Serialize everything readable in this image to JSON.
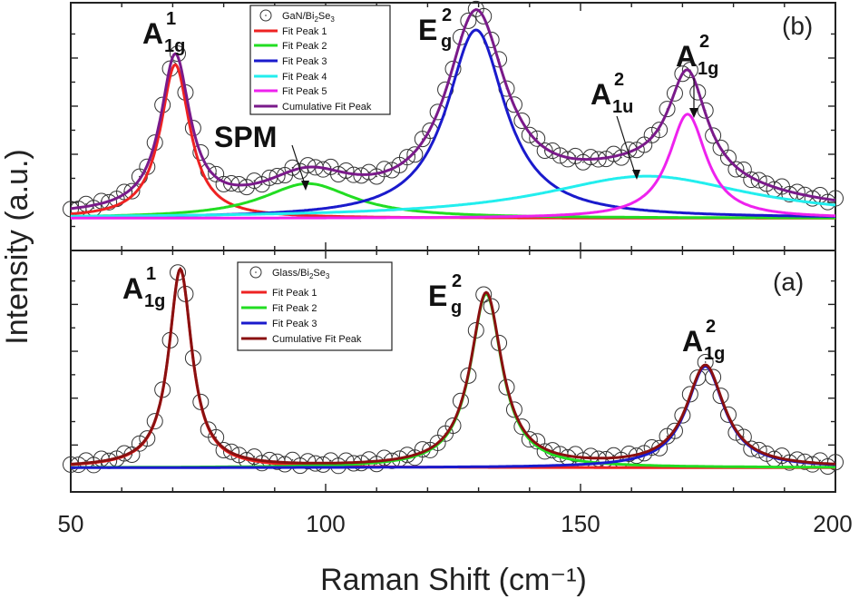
{
  "chart_data": {
    "type": "line",
    "x_axis": {
      "label": "Raman Shift (cm⁻¹)",
      "xlim": [
        50,
        200
      ],
      "ticks": [
        50,
        100,
        150,
        200
      ],
      "tick_labels": [
        "50",
        "100",
        "150",
        "200"
      ]
    },
    "y_axis": {
      "label": "Intensity (a.u.)"
    },
    "panels": [
      {
        "id": "b",
        "panel_label": "(b)",
        "sample": "GaN/Bi2Se3",
        "ylim": [
          0,
          100
        ],
        "baseline": 13,
        "legend": [
          {
            "label": "GaN/Bi2Se3",
            "symbol": "open-circle",
            "color": "#333333"
          },
          {
            "label": "Fit Peak 1",
            "color": "#ee2222"
          },
          {
            "label": "Fit Peak 2",
            "color": "#22dd22"
          },
          {
            "label": "Fit Peak 3",
            "color": "#1a1acc"
          },
          {
            "label": "Fit Peak 4",
            "color": "#22eeee"
          },
          {
            "label": "Fit Peak 5",
            "color": "#ee22ee"
          },
          {
            "label": "Cumulative Fit Peak",
            "color": "#7a1a8a"
          }
        ],
        "series": [
          {
            "name": "Fit Peak 1",
            "color": "#ee2222",
            "center": 70.5,
            "fwhm": 7,
            "amplitude": 62
          },
          {
            "name": "Fit Peak 2",
            "color": "#22dd22",
            "center": 96.5,
            "fwhm": 22,
            "amplitude": 14
          },
          {
            "name": "Fit Peak 3",
            "color": "#1a1acc",
            "center": 129.5,
            "fwhm": 14,
            "amplitude": 76
          },
          {
            "name": "Fit Peak 4",
            "color": "#22eeee",
            "center": 163,
            "fwhm": 50,
            "amplitude": 17
          },
          {
            "name": "Fit Peak 5",
            "color": "#ee22ee",
            "center": 171,
            "fwhm": 9,
            "amplitude": 42
          }
        ],
        "cumulative": {
          "name": "Cumulative Fit Peak",
          "color": "#7a1a8a"
        },
        "annotations": [
          {
            "main": "A",
            "sup": "1",
            "sub": "1g"
          },
          {
            "main": "SPM",
            "sup": "",
            "sub": ""
          },
          {
            "main": "E",
            "sup": "2",
            "sub": "g"
          },
          {
            "main": "A",
            "sup": "2",
            "sub": "1u"
          },
          {
            "main": "A",
            "sup": "2",
            "sub": "1g"
          }
        ]
      },
      {
        "id": "a",
        "panel_label": "(a)",
        "sample": "Glass/Bi2Se3",
        "ylim": [
          0,
          100
        ],
        "baseline": 10,
        "legend": [
          {
            "label": "Glass/Bi2Se3",
            "symbol": "open-circle",
            "color": "#333333"
          },
          {
            "label": "Fit Peak 1",
            "color": "#ee2222"
          },
          {
            "label": "Fit Peak 2",
            "color": "#22dd22"
          },
          {
            "label": "Fit Peak 3",
            "color": "#1a1acc"
          },
          {
            "label": "Cumulative Fit Peak",
            "color": "#8a1010"
          }
        ],
        "series": [
          {
            "name": "Fit Peak 1",
            "color": "#ee2222",
            "center": 71.5,
            "fwhm": 5.5,
            "amplitude": 82
          },
          {
            "name": "Fit Peak 2",
            "color": "#22dd22",
            "center": 131.5,
            "fwhm": 7.5,
            "amplitude": 72
          },
          {
            "name": "Fit Peak 3",
            "color": "#1a1acc",
            "center": 174.5,
            "fwhm": 9,
            "amplitude": 42
          }
        ],
        "cumulative": {
          "name": "Cumulative Fit Peak",
          "color": "#8a1010"
        },
        "annotations": [
          {
            "main": "A",
            "sup": "1",
            "sub": "1g"
          },
          {
            "main": "E",
            "sup": "2",
            "sub": "g"
          },
          {
            "main": "A",
            "sup": "2",
            "sub": "1g"
          }
        ]
      }
    ]
  }
}
